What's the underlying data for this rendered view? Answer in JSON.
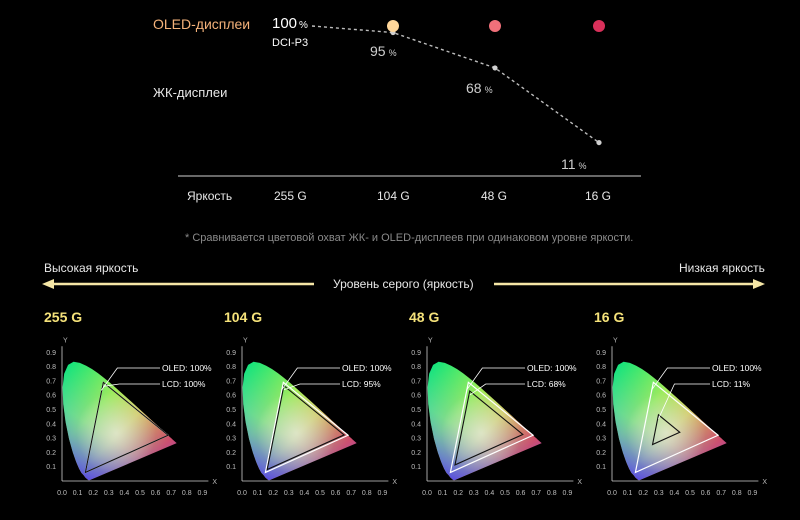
{
  "colors": {
    "oled_gradient": [
      "#fff1a8",
      "#f08a5d",
      "#d9305a"
    ],
    "lcd_dots": "#bfbfbf",
    "panel_title": "#f5e27a",
    "arrow": "#f5e6a6"
  },
  "chart_data": [
    {
      "type": "line",
      "x_categories": [
        "255 G",
        "104 G",
        "48 G",
        "16 G"
      ],
      "series": [
        {
          "name": "OLED-дисплеи",
          "values": [
            100,
            100,
            100,
            100
          ]
        },
        {
          "name": "ЖК-дисплеи",
          "values": [
            100,
            95,
            68,
            11
          ]
        }
      ],
      "start_label": {
        "value": "100",
        "unit": "%",
        "sub": "DCI-P3"
      },
      "data_labels": [
        {
          "value": "95",
          "unit": "%"
        },
        {
          "value": "68",
          "unit": "%"
        },
        {
          "value": "11",
          "unit": "%"
        }
      ],
      "axis_label": "Яркость",
      "footnote": "* Сравнивается цветовой охват ЖК- и OLED-дисплеев при одинаковом уровне яркости."
    },
    {
      "type": "scatter",
      "subtype": "cie-chromaticity",
      "band": {
        "left": "Высокая яркость",
        "center": "Уровень серого (яркость)",
        "right": "Низкая яркость"
      },
      "x_ticks": [
        "0.0",
        "0.1",
        "0.2",
        "0.3",
        "0.4",
        "0.5",
        "0.6",
        "0.7",
        "0.8",
        "0.9"
      ],
      "y_ticks": [
        "0.1",
        "0.2",
        "0.3",
        "0.4",
        "0.5",
        "0.6",
        "0.7",
        "0.8",
        "0.9"
      ],
      "xlabel": "X",
      "ylabel": "Y",
      "xlim": [
        0,
        0.9
      ],
      "ylim": [
        0,
        0.9
      ],
      "oled_triangle": [
        [
          0.68,
          0.32
        ],
        [
          0.265,
          0.69
        ],
        [
          0.15,
          0.06
        ]
      ],
      "lcd_white_point": [
        0.314,
        0.351
      ],
      "panels": [
        {
          "title": "255 G",
          "oled_label": "OLED: 100%",
          "lcd_label": "LCD: 100%",
          "lcd_scale": 1.0
        },
        {
          "title": "104 G",
          "oled_label": "OLED: 100%",
          "lcd_label": "LCD: 95%",
          "lcd_scale": 0.93
        },
        {
          "title": "48 G",
          "oled_label": "OLED: 100%",
          "lcd_label": "LCD: 68%",
          "lcd_scale": 0.82
        },
        {
          "title": "16 G",
          "oled_label": "OLED: 100%",
          "lcd_label": "LCD: 11%",
          "lcd_scale": 0.33
        }
      ]
    }
  ]
}
